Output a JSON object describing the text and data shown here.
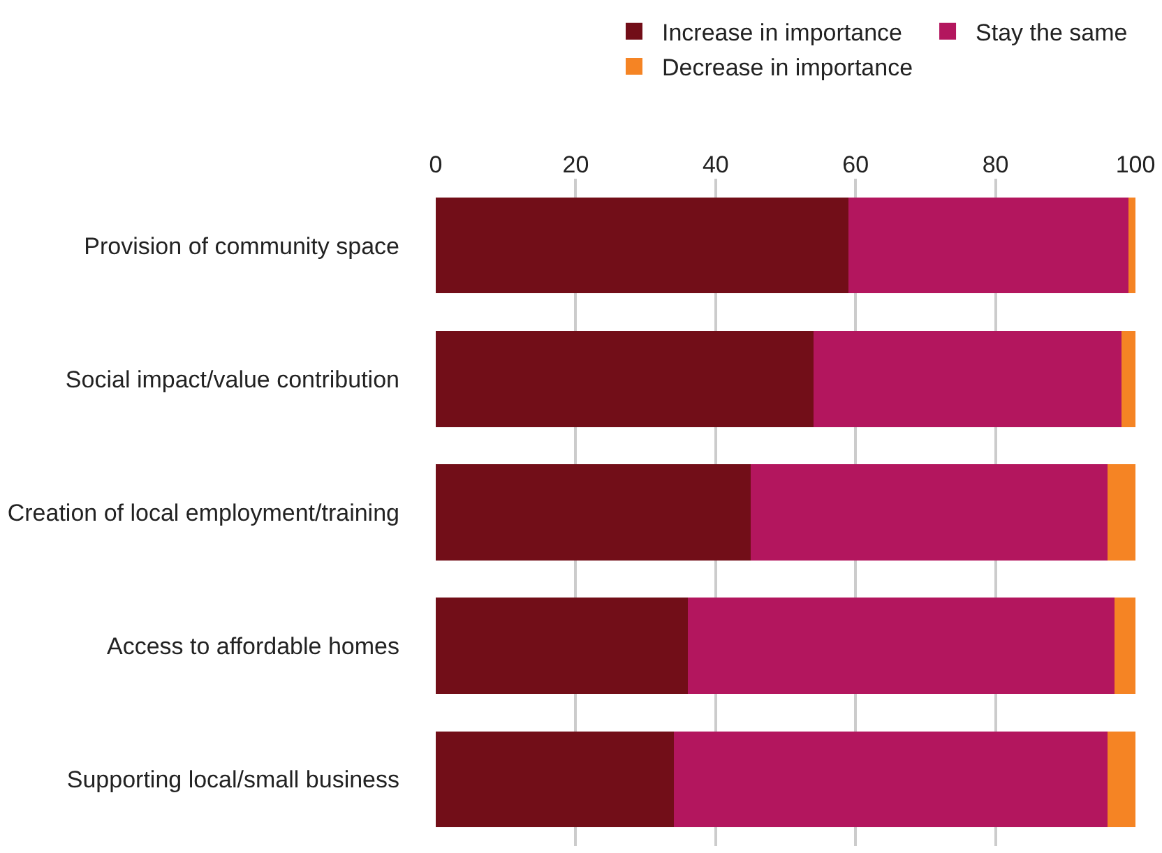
{
  "chart_data": {
    "type": "bar",
    "orientation": "horizontal",
    "stacked": true,
    "categories": [
      "Provision of community space",
      "Social impact/value contribution",
      "Creation of local employment/training",
      "Access to affordable homes",
      "Supporting local/small business"
    ],
    "series": [
      {
        "name": "Increase in importance",
        "color": "#720e18",
        "values": [
          59,
          54,
          45,
          36,
          34
        ]
      },
      {
        "name": "Stay the same",
        "color": "#b3165e",
        "values": [
          40,
          44,
          51,
          61,
          62
        ]
      },
      {
        "name": "Decrease in importance",
        "color": "#f58424",
        "values": [
          1,
          2,
          4,
          3,
          4
        ]
      }
    ],
    "xlim": [
      0,
      100
    ],
    "xticks": [
      0,
      20,
      40,
      60,
      80,
      100
    ],
    "grid": "x",
    "legend": "top right"
  }
}
